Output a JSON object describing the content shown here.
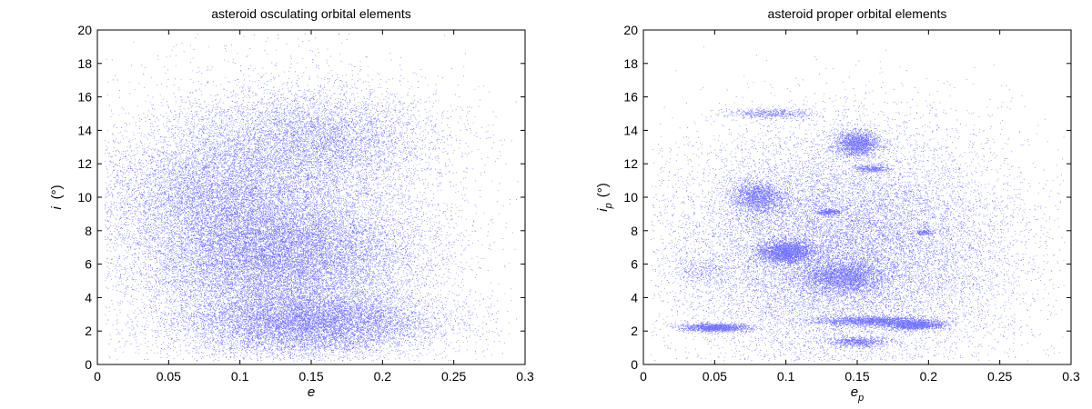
{
  "chart_data": [
    {
      "type": "scatter",
      "title": "asteroid osculating orbital elements",
      "xlabel": "e",
      "xlabel_sub": "",
      "ylabel": "i",
      "ylabel_sub": "",
      "ylabel_unit": "(°)",
      "xlim": [
        0,
        0.3
      ],
      "ylim": [
        0,
        20
      ],
      "xticks": [
        "0",
        "0.05",
        "0.1",
        "0.15",
        "0.2",
        "0.25",
        "0.3"
      ],
      "yticks": [
        "0",
        "2",
        "4",
        "6",
        "8",
        "10",
        "12",
        "14",
        "16",
        "18",
        "20"
      ],
      "grid": false,
      "point_color": "#0000ff",
      "density_clusters": [
        {
          "e": 0.13,
          "i": 6.5,
          "spread_e": 0.045,
          "spread_i": 1.6,
          "weight": 0.22
        },
        {
          "e": 0.15,
          "i": 2.5,
          "spread_e": 0.045,
          "spread_i": 1.0,
          "weight": 0.22
        },
        {
          "e": 0.08,
          "i": 10.0,
          "spread_e": 0.04,
          "spread_i": 1.8,
          "weight": 0.12
        },
        {
          "e": 0.15,
          "i": 13.5,
          "spread_e": 0.045,
          "spread_i": 1.5,
          "weight": 0.12
        },
        {
          "e": 0.12,
          "i": 8.0,
          "spread_e": 0.06,
          "spread_i": 4.0,
          "weight": 0.32
        }
      ]
    },
    {
      "type": "scatter",
      "title": "asteroid proper orbital elements",
      "xlabel": "e",
      "xlabel_sub": "p",
      "ylabel": "i",
      "ylabel_sub": "p",
      "ylabel_unit": "(°)",
      "xlim": [
        0,
        0.3
      ],
      "ylim": [
        0,
        20
      ],
      "xticks": [
        "0",
        "0.05",
        "0.1",
        "0.15",
        "0.2",
        "0.25",
        "0.3"
      ],
      "yticks": [
        "0",
        "2",
        "4",
        "6",
        "8",
        "10",
        "12",
        "14",
        "16",
        "18",
        "20"
      ],
      "grid": false,
      "point_color": "#0000ff",
      "families": [
        {
          "e": 0.1,
          "i": 6.7,
          "spread_e": 0.01,
          "spread_i": 0.35,
          "weight": 0.07
        },
        {
          "e": 0.14,
          "i": 5.2,
          "spread_e": 0.015,
          "spread_i": 0.5,
          "weight": 0.07
        },
        {
          "e": 0.15,
          "i": 13.2,
          "spread_e": 0.008,
          "spread_i": 0.4,
          "weight": 0.05
        },
        {
          "e": 0.08,
          "i": 10.0,
          "spread_e": 0.01,
          "spread_i": 0.5,
          "weight": 0.05
        },
        {
          "e": 0.05,
          "i": 2.2,
          "spread_e": 0.012,
          "spread_i": 0.12,
          "weight": 0.04
        },
        {
          "e": 0.16,
          "i": 2.6,
          "spread_e": 0.02,
          "spread_i": 0.15,
          "weight": 0.05
        },
        {
          "e": 0.19,
          "i": 2.35,
          "spread_e": 0.01,
          "spread_i": 0.15,
          "weight": 0.04
        },
        {
          "e": 0.15,
          "i": 1.35,
          "spread_e": 0.01,
          "spread_i": 0.15,
          "weight": 0.02
        },
        {
          "e": 0.09,
          "i": 15.0,
          "spread_e": 0.015,
          "spread_i": 0.15,
          "weight": 0.015
        },
        {
          "e": 0.16,
          "i": 11.7,
          "spread_e": 0.006,
          "spread_i": 0.1,
          "weight": 0.01
        },
        {
          "e": 0.13,
          "i": 9.1,
          "spread_e": 0.005,
          "spread_i": 0.1,
          "weight": 0.01
        },
        {
          "e": 0.197,
          "i": 7.9,
          "spread_e": 0.003,
          "spread_i": 0.08,
          "weight": 0.005
        },
        {
          "e": 0.04,
          "i": 5.6,
          "spread_e": 0.01,
          "spread_i": 0.4,
          "weight": 0.008
        },
        {
          "e": 0.14,
          "i": 7.0,
          "spread_e": 0.06,
          "spread_i": 3.5,
          "weight": 0.55
        }
      ]
    }
  ]
}
